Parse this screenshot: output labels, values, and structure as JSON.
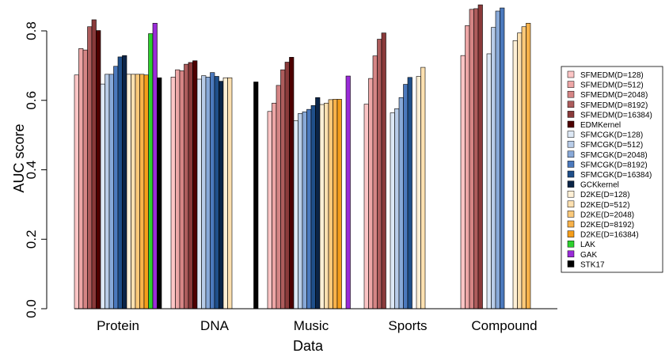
{
  "chart_data": {
    "type": "bar",
    "title": "",
    "xlabel": "Data",
    "ylabel": "AUC score",
    "ylim": [
      0,
      0.8
    ],
    "yticks": [
      0.0,
      0.2,
      0.4,
      0.6,
      0.8
    ],
    "ytick_labels": [
      "0.0",
      "0.2",
      "0.4",
      "0.6",
      "0.8"
    ],
    "legend_position": "right",
    "categories": [
      "Protein",
      "DNA",
      "Music",
      "Sports",
      "Compound"
    ],
    "series": [
      {
        "name": "SFMEDM(D=128)",
        "color": "#fcc5c5",
        "values": [
          0.673,
          0.667,
          0.568,
          0.589,
          0.729
        ]
      },
      {
        "name": "SFMEDM(D=512)",
        "color": "#eda6a6",
        "values": [
          0.749,
          0.688,
          0.592,
          0.663,
          0.815
        ]
      },
      {
        "name": "SFMEDM(D=2048)",
        "color": "#d58585",
        "values": [
          0.745,
          0.685,
          0.643,
          0.728,
          0.862
        ]
      },
      {
        "name": "SFMEDM(D=8192)",
        "color": "#ad5c5c",
        "values": [
          0.812,
          0.704,
          0.688,
          0.776,
          0.864
        ]
      },
      {
        "name": "SFMEDM(D=16384)",
        "color": "#8a3a3a",
        "values": [
          0.832,
          0.709,
          0.71,
          0.794,
          0.875
        ]
      },
      {
        "name": "EDMKernel",
        "color": "#4e0000",
        "values": [
          0.801,
          0.714,
          0.724,
          null,
          null
        ]
      },
      {
        "name": "SFMCGK(D=128)",
        "color": "#dde8f5",
        "values": [
          0.647,
          0.661,
          0.541,
          0.564,
          0.734
        ]
      },
      {
        "name": "SFMCGK(D=512)",
        "color": "#b8cce8",
        "values": [
          0.675,
          0.671,
          0.562,
          0.576,
          0.81
        ]
      },
      {
        "name": "SFMCGK(D=2048)",
        "color": "#88a9d8",
        "values": [
          0.675,
          0.667,
          0.567,
          0.608,
          0.857
        ]
      },
      {
        "name": "SFMCGK(D=8192)",
        "color": "#4b79bd",
        "values": [
          0.698,
          0.68,
          0.574,
          0.646,
          0.866
        ]
      },
      {
        "name": "SFMCGK(D=16384)",
        "color": "#1f4f8a",
        "values": [
          0.725,
          0.669,
          0.585,
          0.666,
          null
        ]
      },
      {
        "name": "GCKkernel",
        "color": "#0b2548",
        "values": [
          0.729,
          0.655,
          0.608,
          null,
          null
        ]
      },
      {
        "name": "D2KE(D=128)",
        "color": "#fff0d6",
        "values": [
          0.675,
          0.665,
          0.588,
          0.669,
          0.772
        ]
      },
      {
        "name": "D2KE(D=512)",
        "color": "#fde0b0",
        "values": [
          0.675,
          0.665,
          0.592,
          0.695,
          0.794
        ]
      },
      {
        "name": "D2KE(D=2048)",
        "color": "#fbc97a",
        "values": [
          0.675,
          null,
          0.602,
          null,
          0.812
        ]
      },
      {
        "name": "D2KE(D=8192)",
        "color": "#f8b24a",
        "values": [
          0.675,
          null,
          0.603,
          null,
          0.822
        ]
      },
      {
        "name": "D2KE(D=16384)",
        "color": "#f59d1a",
        "values": [
          0.673,
          null,
          0.603,
          null,
          null
        ]
      },
      {
        "name": "LAK",
        "color": "#2ed12e",
        "values": [
          0.792,
          null,
          null,
          null,
          null
        ]
      },
      {
        "name": "GAK",
        "color": "#9a2bd8",
        "values": [
          0.822,
          null,
          0.67,
          null,
          null
        ]
      },
      {
        "name": "STK17",
        "color": "#000000",
        "values": [
          0.665,
          0.653,
          null,
          null,
          null
        ]
      }
    ]
  }
}
